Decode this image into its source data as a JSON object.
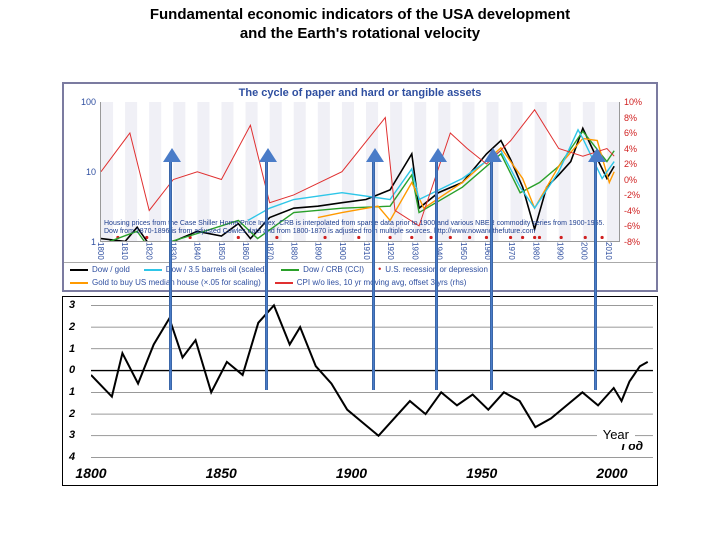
{
  "title_line1": "Fundamental economic indicators of the USA development",
  "title_line2": "and the Earth's rotational velocity",
  "top_chart": {
    "type": "line",
    "title": "The cycle of paper and hard or tangible assets",
    "x": {
      "min": 1800,
      "max": 2015,
      "tick_step": 10
    },
    "y_left": {
      "scale": "log",
      "ticks": [
        1,
        10,
        100
      ],
      "labels": [
        "1",
        "10",
        "100"
      ]
    },
    "y_right": {
      "ticks": [
        -8,
        -6,
        -4,
        -2,
        0,
        2,
        4,
        6,
        8,
        10
      ],
      "labels": [
        "-8%",
        "-6%",
        "-4%",
        "-2%",
        "0%",
        "2%",
        "4%",
        "6%",
        "8%",
        "10%"
      ]
    },
    "background_color": "#ffffff",
    "grid_band_color": "#f0f0f6",
    "series": {
      "dow_gold": {
        "label": "Dow / gold",
        "color": "#000000",
        "width": 1.6,
        "points": [
          [
            1800,
            1.1
          ],
          [
            1810,
            1.0
          ],
          [
            1815,
            1.6
          ],
          [
            1820,
            0.9
          ],
          [
            1830,
            1.0
          ],
          [
            1840,
            1.4
          ],
          [
            1850,
            1.2
          ],
          [
            1857,
            1.8
          ],
          [
            1862,
            1.1
          ],
          [
            1870,
            2.2
          ],
          [
            1880,
            3.0
          ],
          [
            1890,
            3.2
          ],
          [
            1900,
            3.6
          ],
          [
            1910,
            4.0
          ],
          [
            1920,
            5.5
          ],
          [
            1929,
            18
          ],
          [
            1932,
            3.0
          ],
          [
            1940,
            5.0
          ],
          [
            1950,
            7
          ],
          [
            1960,
            18
          ],
          [
            1966,
            28
          ],
          [
            1970,
            15
          ],
          [
            1975,
            6
          ],
          [
            1980,
            1.5
          ],
          [
            1985,
            6
          ],
          [
            1990,
            9
          ],
          [
            1995,
            14
          ],
          [
            2000,
            42
          ],
          [
            2005,
            18
          ],
          [
            2010,
            8
          ],
          [
            2013,
            12
          ]
        ]
      },
      "dow_crb": {
        "label": "Dow / CRB (CCI)",
        "color": "#2aa02a",
        "width": 1.4,
        "points": [
          [
            1800,
            0.9
          ],
          [
            1815,
            1.4
          ],
          [
            1820,
            0.8
          ],
          [
            1840,
            1.3
          ],
          [
            1857,
            2.0
          ],
          [
            1865,
            1.1
          ],
          [
            1880,
            2.6
          ],
          [
            1900,
            3.0
          ],
          [
            1920,
            3.2
          ],
          [
            1929,
            9
          ],
          [
            1932,
            2.6
          ],
          [
            1950,
            6
          ],
          [
            1966,
            18
          ],
          [
            1974,
            5
          ],
          [
            1982,
            7
          ],
          [
            1990,
            12
          ],
          [
            2000,
            38
          ],
          [
            2010,
            14
          ],
          [
            2013,
            20
          ]
        ]
      },
      "gold_house": {
        "label": "Gold to buy US median house (×.05 for scaling)",
        "color": "#ff9a00",
        "width": 1.4,
        "points": [
          [
            1890,
            2.2
          ],
          [
            1900,
            2.6
          ],
          [
            1915,
            3.2
          ],
          [
            1920,
            2.0
          ],
          [
            1929,
            7
          ],
          [
            1934,
            3.0
          ],
          [
            1950,
            7
          ],
          [
            1966,
            22
          ],
          [
            1975,
            8
          ],
          [
            1980,
            3.0
          ],
          [
            1990,
            12
          ],
          [
            2000,
            30
          ],
          [
            2006,
            28
          ],
          [
            2011,
            7
          ],
          [
            2013,
            10
          ]
        ]
      },
      "dow_oil": {
        "label": "Dow / 3.5 barrels oil (scaled)",
        "color": "#2ec6e8",
        "width": 1.4,
        "points": [
          [
            1861,
            2.0
          ],
          [
            1870,
            3.0
          ],
          [
            1880,
            4
          ],
          [
            1900,
            5
          ],
          [
            1920,
            4
          ],
          [
            1929,
            11
          ],
          [
            1932,
            4
          ],
          [
            1950,
            8
          ],
          [
            1966,
            20
          ],
          [
            1974,
            6
          ],
          [
            1980,
            3
          ],
          [
            1990,
            10
          ],
          [
            1998,
            40
          ],
          [
            2000,
            30
          ],
          [
            2008,
            8
          ],
          [
            2013,
            14
          ]
        ]
      },
      "cpi": {
        "label": "CPI w/o lies, 10 yr moving avg, offset 3 yrs (rhs)",
        "color": "#e03030",
        "width": 1.0,
        "right_axis": true,
        "points": [
          [
            1800,
            1
          ],
          [
            1812,
            6
          ],
          [
            1820,
            -4
          ],
          [
            1830,
            0
          ],
          [
            1840,
            1
          ],
          [
            1850,
            0
          ],
          [
            1862,
            7
          ],
          [
            1870,
            -3
          ],
          [
            1880,
            -2
          ],
          [
            1900,
            1
          ],
          [
            1918,
            8
          ],
          [
            1922,
            -4
          ],
          [
            1932,
            -6
          ],
          [
            1945,
            6
          ],
          [
            1952,
            4
          ],
          [
            1960,
            2
          ],
          [
            1970,
            5
          ],
          [
            1980,
            9
          ],
          [
            1990,
            4
          ],
          [
            2000,
            3
          ],
          [
            2010,
            4
          ],
          [
            2013,
            3
          ]
        ]
      }
    },
    "recession_label": "U.S. recession or depression",
    "recession_marker_color": "#d02020",
    "footnote": "Housing prices from the Case Shiller Home Price Index. CRB is interpolated from sparse data prior to 1900 and various NBER commodity series from 1900-1955. Dow from 1870-1896 is from adjusted Cowles data and from 1800-1870 is adjusted from multiple sources.   http://www.nowandthefuture.com",
    "title_fontsize": 11,
    "label_fontsize": 9
  },
  "bottom_chart": {
    "type": "line",
    "x": {
      "min": 1800,
      "max": 2015,
      "ticks": [
        1800,
        1850,
        1900,
        1950,
        2000
      ]
    },
    "y": {
      "ticks": [
        3,
        2,
        1,
        0,
        -1,
        -2,
        -3,
        -4
      ],
      "labels": [
        "3",
        "2",
        "1",
        "0",
        "1",
        "2",
        "3",
        "4"
      ]
    },
    "axis_label": "Год",
    "overlay_label": "Year",
    "line_color": "#000000",
    "line_width": 2.0,
    "background_color": "#ffffff",
    "points": [
      [
        1800,
        -0.2
      ],
      [
        1808,
        -1.2
      ],
      [
        1812,
        0.8
      ],
      [
        1818,
        -0.6
      ],
      [
        1824,
        1.2
      ],
      [
        1830,
        2.4
      ],
      [
        1835,
        0.6
      ],
      [
        1840,
        1.4
      ],
      [
        1846,
        -1.0
      ],
      [
        1852,
        0.4
      ],
      [
        1858,
        -0.2
      ],
      [
        1864,
        2.2
      ],
      [
        1870,
        3.0
      ],
      [
        1876,
        1.2
      ],
      [
        1880,
        2.0
      ],
      [
        1886,
        0.2
      ],
      [
        1892,
        -0.6
      ],
      [
        1898,
        -1.8
      ],
      [
        1904,
        -2.4
      ],
      [
        1910,
        -3.0
      ],
      [
        1916,
        -2.2
      ],
      [
        1922,
        -1.4
      ],
      [
        1928,
        -2.0
      ],
      [
        1934,
        -1.0
      ],
      [
        1940,
        -1.6
      ],
      [
        1946,
        -1.1
      ],
      [
        1952,
        -1.8
      ],
      [
        1958,
        -1.0
      ],
      [
        1964,
        -1.4
      ],
      [
        1970,
        -2.6
      ],
      [
        1976,
        -2.2
      ],
      [
        1982,
        -1.6
      ],
      [
        1988,
        -1.0
      ],
      [
        1994,
        -1.6
      ],
      [
        2000,
        -0.8
      ],
      [
        2003,
        -1.4
      ],
      [
        2006,
        -0.5
      ],
      [
        2010,
        0.2
      ],
      [
        2013,
        0.4
      ]
    ]
  },
  "arrows": {
    "color": "#4a7cc8",
    "positions_year": [
      1830,
      1870,
      1914,
      1940,
      1963,
      2006
    ]
  }
}
